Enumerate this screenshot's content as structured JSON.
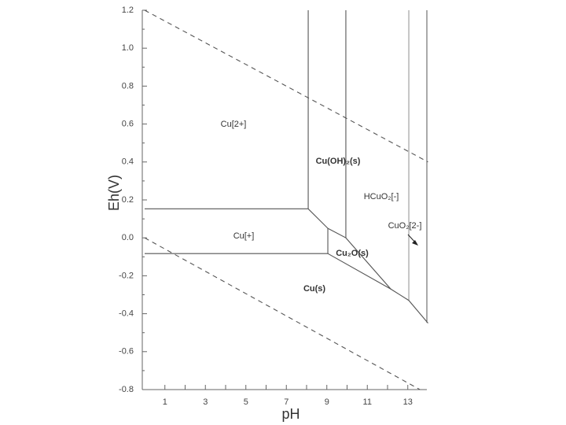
{
  "chart_data": {
    "type": "line",
    "x_label": "pH",
    "y_label": "Eh(V)",
    "xlim": [
      0,
      14
    ],
    "ylim": [
      -0.8,
      1.2
    ],
    "xticks": [
      1,
      3,
      5,
      7,
      9,
      11,
      13
    ],
    "x_minor_ticks": [
      2,
      4,
      6,
      8,
      10,
      12
    ],
    "yticks": [
      1.2,
      {
        "value": 1,
        "label": "1.0"
      },
      0.8,
      0.6,
      0.4,
      0.2,
      {
        "value": 0,
        "label": "0.0"
      },
      -0.2,
      -0.4,
      -0.6,
      -0.8
    ],
    "y_minor_ticks": [
      1.1,
      0.9,
      0.7,
      0.5,
      0.3,
      0.1,
      -0.1,
      -0.3,
      -0.5,
      -0.7
    ],
    "series": [
      {
        "color": "#555555",
        "dashed": true,
        "x": [
          0,
          14
        ],
        "values": [
          1.2,
          0.4
        ]
      },
      {
        "color": "#555555",
        "dashed": true,
        "x": [
          0,
          13.6
        ],
        "values": [
          0,
          -0.8
        ]
      },
      {
        "color": "#555555",
        "x": [
          0,
          8.08,
          9.05
        ],
        "values": [
          0.153,
          0.153,
          0.05
        ]
      },
      {
        "color": "#555555",
        "x": [
          8.08,
          8.08
        ],
        "values": [
          1.2,
          0.153
        ]
      },
      {
        "color": "#555555",
        "x": [
          9.94,
          9.94
        ],
        "values": [
          1.2,
          0
        ]
      },
      {
        "color": "#999999",
        "x": [
          13.05,
          13.05
        ],
        "values": [
          1.2,
          -0.33
        ]
      },
      {
        "color": "#555555",
        "x": [
          0,
          9.05,
          9.05
        ],
        "values": [
          -0.083,
          -0.083,
          0.05
        ]
      },
      {
        "color": "#555555",
        "x": [
          9.05,
          9.94,
          12.16,
          13.05,
          14
        ],
        "values": [
          0.05,
          0,
          -0.27,
          -0.33,
          -0.45
        ]
      },
      {
        "color": "#555555",
        "x": [
          9.05,
          12.16
        ],
        "values": [
          -0.083,
          -0.27
        ]
      }
    ],
    "annotations": [
      "Cu[2+]",
      "Cu(OH)₂(s)",
      "HCuO₂[-]",
      "CuO₂[2-]",
      "Cu[+]",
      "Cu₂O(s)",
      "Cu(s)"
    ]
  }
}
